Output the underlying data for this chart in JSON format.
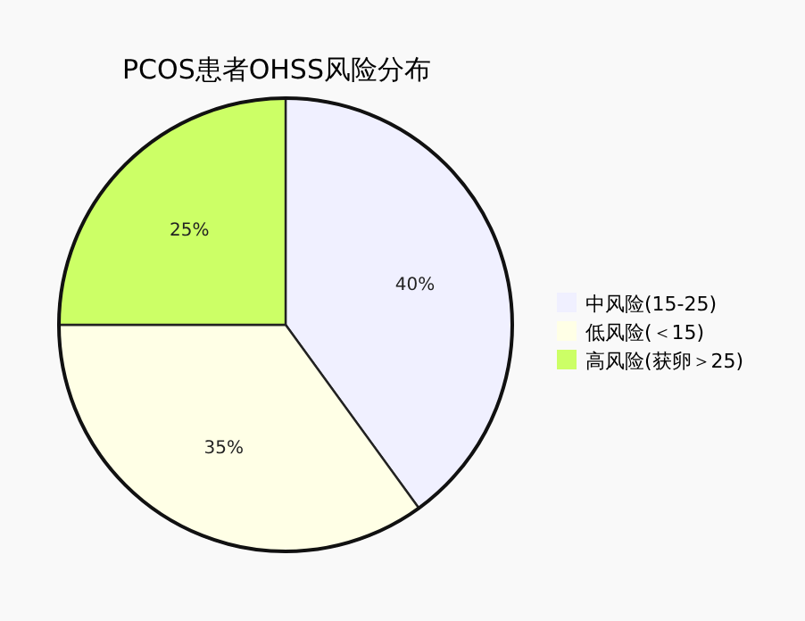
{
  "chart_data": {
    "type": "pie",
    "title": "PCOS患者OHSS风险分布",
    "categories": [
      "中风险(15-25)",
      "低风险(＜15)",
      "高风险(获卵＞25)"
    ],
    "values": [
      40,
      35,
      25
    ],
    "colors": [
      "#f0f0ff",
      "#ffffe6",
      "#ccff66"
    ],
    "value_labels": [
      "40%",
      "35%",
      "25%"
    ],
    "legend": "right"
  }
}
